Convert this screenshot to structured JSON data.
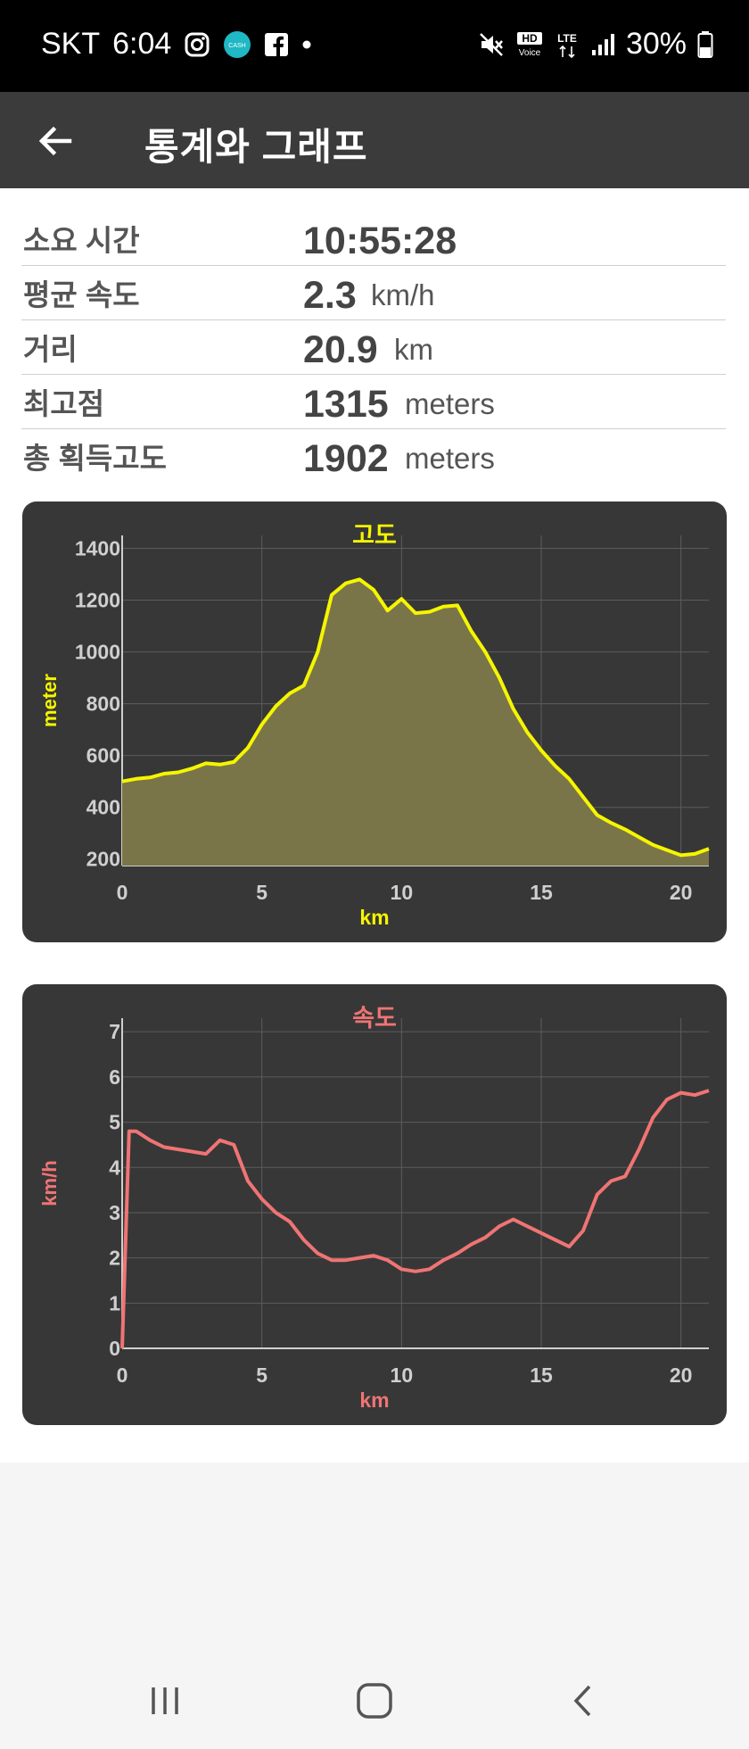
{
  "status_bar": {
    "carrier": "SKT",
    "time": "6:04",
    "notification_icons": [
      "instagram-icon",
      "cash-app-icon",
      "facebook-icon",
      "dot-icon"
    ],
    "cash_label": "CASH",
    "system_icons": [
      "mute-icon",
      "hd-voice-icon",
      "lte-icon",
      "signal-icon",
      "battery-icon"
    ],
    "hd_label": "HD",
    "voice_label": "Voice",
    "lte_label": "LTE",
    "battery": "30%"
  },
  "app_bar": {
    "title": "통계와 그래프",
    "back_icon": "arrow-left-icon"
  },
  "stats": [
    {
      "label": "소요 시간",
      "value": "10:55:28",
      "unit": ""
    },
    {
      "label": "평균 속도",
      "value": "2.3",
      "unit": "km/h"
    },
    {
      "label": "거리",
      "value": "20.9",
      "unit": "km"
    },
    {
      "label": "최고점",
      "value": "1315",
      "unit": "meters"
    },
    {
      "label": "총 획득고도",
      "value": "1902",
      "unit": "meters"
    }
  ],
  "chart_data": [
    {
      "type": "area",
      "title": "고도",
      "xlabel": "km",
      "ylabel": "meter",
      "xlim": [
        0,
        21
      ],
      "ylim": [
        175,
        1450
      ],
      "xticks": [
        0,
        5,
        10,
        15,
        20
      ],
      "yticks": [
        200,
        400,
        600,
        800,
        1000,
        1200,
        1400
      ],
      "grid": true,
      "color": "#f5f500",
      "fill": "#7a7548",
      "x": [
        0,
        0.5,
        1,
        1.5,
        2,
        2.5,
        3,
        3.5,
        4,
        4.5,
        5,
        5.5,
        6,
        6.5,
        7,
        7.5,
        8,
        8.5,
        9,
        9.5,
        10,
        10.5,
        11,
        11.5,
        12,
        12.5,
        13,
        13.5,
        14,
        14.5,
        15,
        15.5,
        16,
        16.5,
        17,
        17.5,
        18,
        18.5,
        19,
        19.5,
        20,
        20.5,
        21
      ],
      "y": [
        500,
        510,
        515,
        530,
        535,
        550,
        570,
        565,
        575,
        630,
        720,
        790,
        840,
        870,
        1000,
        1220,
        1265,
        1280,
        1240,
        1160,
        1205,
        1150,
        1155,
        1175,
        1180,
        1080,
        1000,
        900,
        780,
        690,
        620,
        560,
        510,
        440,
        370,
        340,
        315,
        285,
        255,
        235,
        215,
        220,
        240
      ]
    },
    {
      "type": "line",
      "title": "속도",
      "xlabel": "km",
      "ylabel": "km/h",
      "xlim": [
        0,
        21
      ],
      "ylim": [
        0,
        7.3
      ],
      "xticks": [
        0,
        5,
        10,
        15,
        20
      ],
      "yticks": [
        0,
        1,
        2,
        3,
        4,
        5,
        6,
        7
      ],
      "grid": true,
      "color": "#f07474",
      "x": [
        0,
        0.25,
        0.5,
        1,
        1.5,
        2,
        2.5,
        3,
        3.5,
        4,
        4.5,
        5,
        5.5,
        6,
        6.5,
        7,
        7.5,
        8,
        8.5,
        9,
        9.5,
        10,
        10.5,
        11,
        11.5,
        12,
        12.5,
        13,
        13.5,
        14,
        14.5,
        15,
        15.5,
        16,
        16.5,
        17,
        17.5,
        18,
        18.5,
        19,
        19.5,
        20,
        20.5,
        21
      ],
      "y": [
        0,
        4.8,
        4.8,
        4.6,
        4.45,
        4.4,
        4.35,
        4.3,
        4.6,
        4.5,
        3.7,
        3.3,
        3.0,
        2.8,
        2.4,
        2.1,
        1.95,
        1.95,
        2.0,
        2.05,
        1.95,
        1.75,
        1.7,
        1.75,
        1.95,
        2.1,
        2.3,
        2.45,
        2.7,
        2.85,
        2.7,
        2.55,
        2.4,
        2.25,
        2.6,
        3.4,
        3.7,
        3.8,
        4.4,
        5.1,
        5.5,
        5.65,
        5.6,
        5.7
      ]
    }
  ],
  "nav_bar": {
    "icons": [
      "recents-icon",
      "home-icon",
      "back-icon"
    ]
  }
}
